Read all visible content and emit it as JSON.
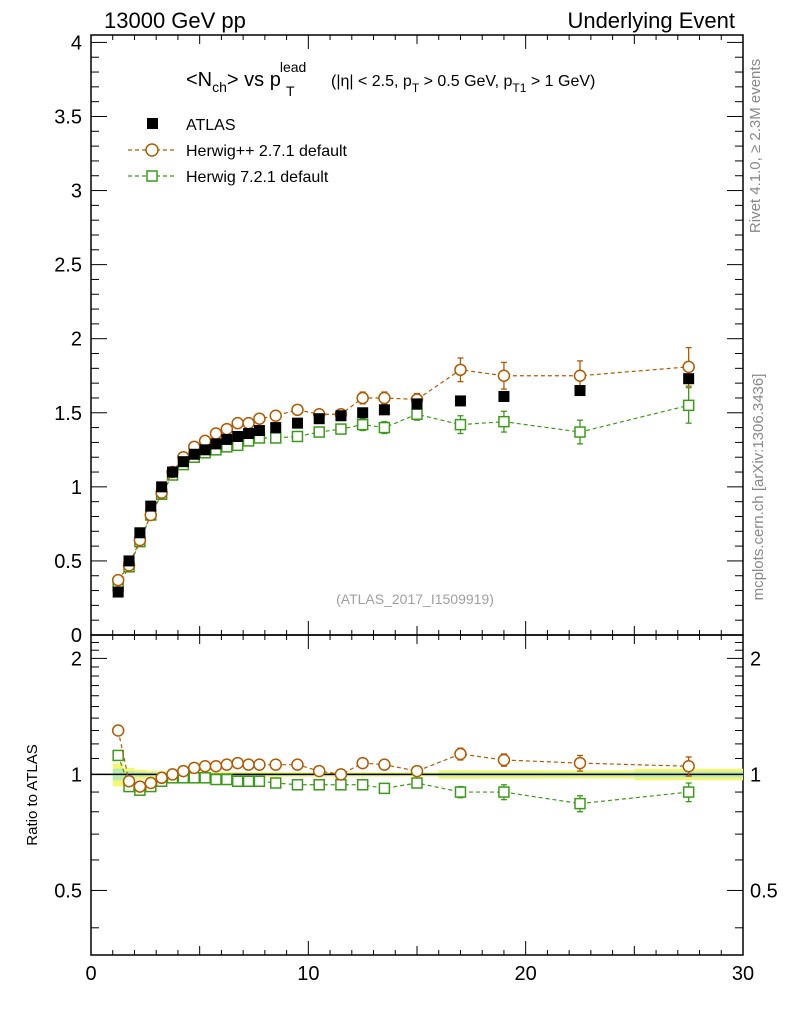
{
  "header": {
    "left": "13000 GeV pp",
    "right": "Underlying Event"
  },
  "side_labels": {
    "rivet": "Rivet 4.1.0, ≥ 2.3M events",
    "mcplots": "mcplots.cern.ch [arXiv:1306.3436]"
  },
  "watermark": "(ATLAS_2017_I1509919)",
  "title": {
    "nch": "<N",
    "nch_sub": "ch",
    "vs": "> vs p",
    "pt_sup": "lead",
    "pt_sub": "T",
    "cut1": "(|η| < 2.5, p",
    "cut1_sub": "T",
    "cut2": " > 0.5 GeV, p",
    "cut2_sub": "T1",
    "cut3": " > 1 GeV)"
  },
  "colors": {
    "atlas": "#000000",
    "herwigpp": "#b35900",
    "herwig7": "#3c9a1a",
    "band_outer": "#f5f576",
    "band_inner": "#b8ecb0"
  },
  "chart_data": [
    {
      "type": "scatter",
      "title": "<Nch> vs pT lead (|η| < 2.5, pT > 0.5 GeV, pT1 > 1 GeV)",
      "xlabel": "",
      "ylabel": "",
      "xlim": [
        0,
        30
      ],
      "ylim": [
        0,
        4.05
      ],
      "yticks": [
        0,
        0.5,
        1,
        1.5,
        2,
        2.5,
        3,
        3.5,
        4
      ],
      "ytick_labels": [
        "0",
        "0.5",
        "1",
        "1.5",
        "2",
        "2.5",
        "3",
        "3.5",
        "4"
      ],
      "legend": [
        "ATLAS",
        "Herwig++ 2.7.1 default",
        "Herwig 7.2.1 default"
      ],
      "legend_position": "top-left",
      "x": [
        1.25,
        1.75,
        2.25,
        2.75,
        3.25,
        3.75,
        4.25,
        4.75,
        5.25,
        5.75,
        6.25,
        6.75,
        7.25,
        7.75,
        8.5,
        9.5,
        10.5,
        11.5,
        12.5,
        13.5,
        15,
        17,
        19,
        22.5,
        27.5
      ],
      "series": [
        {
          "name": "ATLAS",
          "marker": "filled-square",
          "values": [
            0.29,
            0.5,
            0.69,
            0.87,
            1.0,
            1.1,
            1.17,
            1.22,
            1.25,
            1.29,
            1.32,
            1.34,
            1.36,
            1.38,
            1.4,
            1.43,
            1.46,
            1.48,
            1.5,
            1.52,
            1.56,
            1.58,
            1.61,
            1.65,
            1.73
          ],
          "errors": [
            0.01,
            0.01,
            0.01,
            0.01,
            0.01,
            0.01,
            0.01,
            0.01,
            0.01,
            0.01,
            0.01,
            0.01,
            0.01,
            0.01,
            0.01,
            0.01,
            0.01,
            0.01,
            0.01,
            0.01,
            0.01,
            0.02,
            0.02,
            0.02,
            0.03
          ]
        },
        {
          "name": "Herwig++ 2.7.1 default",
          "marker": "open-circle",
          "values": [
            0.37,
            0.47,
            0.64,
            0.81,
            0.96,
            1.1,
            1.2,
            1.27,
            1.31,
            1.36,
            1.39,
            1.43,
            1.43,
            1.46,
            1.48,
            1.52,
            1.49,
            1.49,
            1.6,
            1.6,
            1.59,
            1.79,
            1.75,
            1.75,
            1.81
          ],
          "errors": [
            0.01,
            0.01,
            0.01,
            0.01,
            0.01,
            0.01,
            0.01,
            0.01,
            0.01,
            0.01,
            0.01,
            0.02,
            0.02,
            0.02,
            0.02,
            0.02,
            0.02,
            0.03,
            0.04,
            0.04,
            0.04,
            0.08,
            0.09,
            0.1,
            0.13
          ]
        },
        {
          "name": "Herwig 7.2.1 default",
          "marker": "open-square",
          "values": [
            0.33,
            0.46,
            0.63,
            0.81,
            0.95,
            1.08,
            1.15,
            1.2,
            1.23,
            1.25,
            1.27,
            1.28,
            1.31,
            1.33,
            1.33,
            1.34,
            1.37,
            1.39,
            1.42,
            1.4,
            1.49,
            1.42,
            1.44,
            1.37,
            1.55
          ],
          "errors": [
            0.01,
            0.01,
            0.01,
            0.01,
            0.01,
            0.01,
            0.01,
            0.01,
            0.01,
            0.01,
            0.01,
            0.02,
            0.02,
            0.02,
            0.02,
            0.02,
            0.02,
            0.03,
            0.04,
            0.04,
            0.04,
            0.06,
            0.07,
            0.08,
            0.12
          ]
        }
      ]
    },
    {
      "type": "scatter",
      "title": "",
      "xlabel": "",
      "ylabel": "Ratio to ATLAS",
      "xlim": [
        0,
        30
      ],
      "ylim": [
        0.34,
        2.3
      ],
      "yticks": [
        0.5,
        1,
        2
      ],
      "ytick_labels": [
        "0.5",
        "1",
        "2"
      ],
      "xticks": [
        0,
        10,
        20,
        30
      ],
      "xtick_labels": [
        "0",
        "10",
        "20",
        "30"
      ],
      "reference_line": 1,
      "x": [
        1.25,
        1.75,
        2.25,
        2.75,
        3.25,
        3.75,
        4.25,
        4.75,
        5.25,
        5.75,
        6.25,
        6.75,
        7.25,
        7.75,
        8.5,
        9.5,
        10.5,
        11.5,
        12.5,
        13.5,
        15,
        17,
        19,
        22.5,
        27.5
      ],
      "series": [
        {
          "name": "Herwig++ 2.7.1 default",
          "marker": "open-circle",
          "values": [
            1.3,
            0.96,
            0.93,
            0.95,
            0.98,
            1.0,
            1.02,
            1.04,
            1.05,
            1.05,
            1.06,
            1.07,
            1.06,
            1.06,
            1.06,
            1.06,
            1.02,
            1.0,
            1.07,
            1.06,
            1.02,
            1.13,
            1.09,
            1.07,
            1.05
          ],
          "errors": [
            0.02,
            0.02,
            0.01,
            0.01,
            0.01,
            0.01,
            0.01,
            0.01,
            0.01,
            0.01,
            0.01,
            0.01,
            0.01,
            0.01,
            0.01,
            0.01,
            0.01,
            0.02,
            0.02,
            0.02,
            0.02,
            0.04,
            0.04,
            0.05,
            0.06
          ]
        },
        {
          "name": "Herwig 7.2.1 default",
          "marker": "open-square",
          "values": [
            1.12,
            0.93,
            0.91,
            0.93,
            0.96,
            0.98,
            0.98,
            0.98,
            0.98,
            0.97,
            0.97,
            0.96,
            0.96,
            0.96,
            0.95,
            0.94,
            0.94,
            0.94,
            0.94,
            0.92,
            0.95,
            0.9,
            0.9,
            0.84,
            0.9
          ],
          "errors": [
            0.02,
            0.02,
            0.01,
            0.01,
            0.01,
            0.01,
            0.01,
            0.01,
            0.01,
            0.01,
            0.01,
            0.01,
            0.01,
            0.01,
            0.01,
            0.01,
            0.01,
            0.02,
            0.02,
            0.02,
            0.02,
            0.03,
            0.04,
            0.04,
            0.05
          ]
        }
      ]
    }
  ]
}
